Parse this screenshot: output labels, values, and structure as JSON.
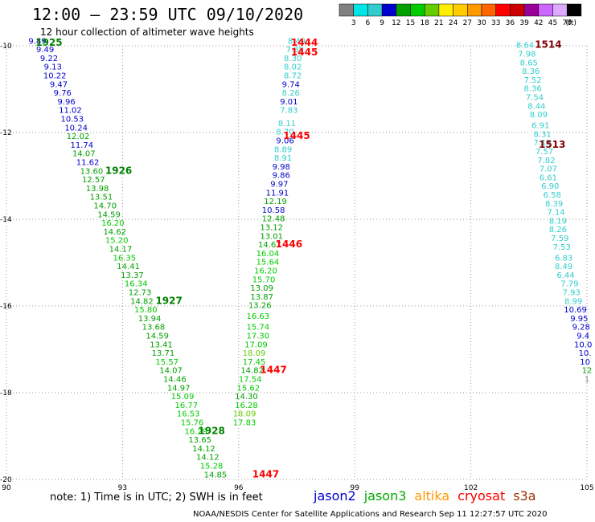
{
  "header": {
    "title": "12:00 – 23:59 UTC 09/10/2020",
    "subtitle": "12 hour collection of altimeter wave heights"
  },
  "footer": {
    "note": "note: 1) Time is in UTC; 2) SWH is in feet",
    "credit": "NOAA/NESDIS Center for Satellite Applications and Research   Sep 11 12:27:57 UTC 2020"
  },
  "satellites": [
    {
      "name": "jason2",
      "color": "#0000cc"
    },
    {
      "name": "jason3",
      "color": "#00aa00"
    },
    {
      "name": "altika",
      "color": "#ff9900"
    },
    {
      "name": "cryosat",
      "color": "#ff0000"
    },
    {
      "name": "s3a",
      "color": "#993300"
    }
  ],
  "chart_data": {
    "type": "scatter",
    "title": "12:00 – 23:59 UTC 09/10/2020",
    "subtitle": "12 hour collection of altimeter wave heights",
    "x_unit": "longitude",
    "y_unit": "latitude",
    "xlim": [
      90,
      105
    ],
    "ylim": [
      -20,
      -10
    ],
    "x_ticks": [
      90,
      93,
      96,
      99,
      102,
      105
    ],
    "y_ticks": [
      -10,
      -12,
      -14,
      -16,
      -18,
      -20
    ],
    "grid": true,
    "color_scale": {
      "unit": "(ft)",
      "thresholds": [
        "3",
        "6",
        "9",
        "12",
        "15",
        "18",
        "21",
        "24",
        "27",
        "30",
        "33",
        "36",
        "39",
        "42",
        "45",
        "70"
      ],
      "colors": [
        "#808080",
        "#00e5e5",
        "#33cccc",
        "#0000cc",
        "#00a000",
        "#00cc00",
        "#66cc00",
        "#ffee00",
        "#ffcc00",
        "#ff9900",
        "#ff6600",
        "#ff0000",
        "#cc0000",
        "#990099",
        "#cc66ff",
        "#ddaaff",
        "#000000"
      ]
    },
    "tracks": [
      {
        "track_labels": [
          {
            "text": "1925",
            "lon": 91.1,
            "lat": -10.0
          },
          {
            "text": "1926",
            "lon": 92.9,
            "lat": -12.95
          },
          {
            "text": "1927",
            "lon": 94.2,
            "lat": -15.95
          },
          {
            "text": "1928",
            "lon": 95.3,
            "lat": -18.95
          }
        ],
        "points": [
          {
            "lon": 90.8,
            "lat": -9.95,
            "swh": "9.89"
          },
          {
            "lon": 91.0,
            "lat": -10.15,
            "swh": "9.49"
          },
          {
            "lon": 91.1,
            "lat": -10.35,
            "swh": "9.22"
          },
          {
            "lon": 91.2,
            "lat": -10.55,
            "swh": "9.13"
          },
          {
            "lon": 91.25,
            "lat": -10.75,
            "swh": "10.22"
          },
          {
            "lon": 91.35,
            "lat": -10.95,
            "swh": "9.47"
          },
          {
            "lon": 91.45,
            "lat": -11.15,
            "swh": "9.76"
          },
          {
            "lon": 91.55,
            "lat": -11.35,
            "swh": "9.96"
          },
          {
            "lon": 91.65,
            "lat": -11.55,
            "swh": "11.02"
          },
          {
            "lon": 91.7,
            "lat": -11.75,
            "swh": "10.53"
          },
          {
            "lon": 91.8,
            "lat": -11.95,
            "swh": "10.24"
          },
          {
            "lon": 91.85,
            "lat": -12.15,
            "swh": "12.02"
          },
          {
            "lon": 91.95,
            "lat": -12.35,
            "swh": "11.74"
          },
          {
            "lon": 92.0,
            "lat": -12.55,
            "swh": "14.07"
          },
          {
            "lon": 92.1,
            "lat": -12.75,
            "swh": "11.62"
          },
          {
            "lon": 92.2,
            "lat": -12.95,
            "swh": "13.60"
          },
          {
            "lon": 92.25,
            "lat": -13.15,
            "swh": "12.57"
          },
          {
            "lon": 92.35,
            "lat": -13.35,
            "swh": "13.98"
          },
          {
            "lon": 92.45,
            "lat": -13.55,
            "swh": "13.51"
          },
          {
            "lon": 92.55,
            "lat": -13.75,
            "swh": "14.70"
          },
          {
            "lon": 92.65,
            "lat": -13.95,
            "swh": "14.59"
          },
          {
            "lon": 92.75,
            "lat": -14.15,
            "swh": "16.20"
          },
          {
            "lon": 92.8,
            "lat": -14.35,
            "swh": "14.62"
          },
          {
            "lon": 92.85,
            "lat": -14.55,
            "swh": "15.20"
          },
          {
            "lon": 92.95,
            "lat": -14.75,
            "swh": "14.17"
          },
          {
            "lon": 93.05,
            "lat": -14.95,
            "swh": "16.35"
          },
          {
            "lon": 93.15,
            "lat": -15.15,
            "swh": "14.41"
          },
          {
            "lon": 93.25,
            "lat": -15.35,
            "swh": "13.37"
          },
          {
            "lon": 93.35,
            "lat": -15.55,
            "swh": "16.34"
          },
          {
            "lon": 93.45,
            "lat": -15.75,
            "swh": "12.73"
          },
          {
            "lon": 93.5,
            "lat": -15.95,
            "swh": "14.82"
          },
          {
            "lon": 93.6,
            "lat": -16.15,
            "swh": "15.80"
          },
          {
            "lon": 93.7,
            "lat": -16.35,
            "swh": "13.94"
          },
          {
            "lon": 93.8,
            "lat": -16.55,
            "swh": "13.68"
          },
          {
            "lon": 93.9,
            "lat": -16.75,
            "swh": "14.59"
          },
          {
            "lon": 94.0,
            "lat": -16.95,
            "swh": "13.41"
          },
          {
            "lon": 94.05,
            "lat": -17.15,
            "swh": "13.71"
          },
          {
            "lon": 94.15,
            "lat": -17.35,
            "swh": "15.57"
          },
          {
            "lon": 94.25,
            "lat": -17.55,
            "swh": "14.07"
          },
          {
            "lon": 94.35,
            "lat": -17.75,
            "swh": "14.46"
          },
          {
            "lon": 94.45,
            "lat": -17.95,
            "swh": "14.97"
          },
          {
            "lon": 94.55,
            "lat": -18.15,
            "swh": "15.09"
          },
          {
            "lon": 94.65,
            "lat": -18.35,
            "swh": "16.77"
          },
          {
            "lon": 94.7,
            "lat": -18.55,
            "swh": "16.53"
          },
          {
            "lon": 94.8,
            "lat": -18.75,
            "swh": "15.76"
          },
          {
            "lon": 94.9,
            "lat": -18.95,
            "swh": "16.29"
          },
          {
            "lon": 95.0,
            "lat": -19.15,
            "swh": "13.65"
          },
          {
            "lon": 95.1,
            "lat": -19.35,
            "swh": "14.12"
          },
          {
            "lon": 95.2,
            "lat": -19.55,
            "swh": "14.12"
          },
          {
            "lon": 95.3,
            "lat": -19.75,
            "swh": "15.28"
          },
          {
            "lon": 95.4,
            "lat": -19.95,
            "swh": "14.85"
          }
        ]
      },
      {
        "track_labels": [
          {
            "text": "1444",
            "lon": 97.7,
            "lat": -10.0
          },
          {
            "text": "1445",
            "lon": 97.7,
            "lat": -10.22
          },
          {
            "text": "1445",
            "lon": 97.5,
            "lat": -12.15
          },
          {
            "text": "1446",
            "lon": 97.3,
            "lat": -14.65
          },
          {
            "text": "1447",
            "lon": 96.9,
            "lat": -17.55
          },
          {
            "text": "1447",
            "lon": 96.7,
            "lat": -19.95
          }
        ],
        "points": [
          {
            "lon": 97.5,
            "lat": -9.95,
            "swh": "8.49"
          },
          {
            "lon": 97.45,
            "lat": -10.15,
            "swh": "7.88"
          },
          {
            "lon": 97.4,
            "lat": -10.35,
            "swh": "8.30"
          },
          {
            "lon": 97.4,
            "lat": -10.55,
            "swh": "8.02"
          },
          {
            "lon": 97.4,
            "lat": -10.75,
            "swh": "8.72"
          },
          {
            "lon": 97.35,
            "lat": -10.95,
            "swh": "9.74"
          },
          {
            "lon": 97.35,
            "lat": -11.15,
            "swh": "8.26"
          },
          {
            "lon": 97.3,
            "lat": -11.35,
            "swh": "9.01"
          },
          {
            "lon": 97.3,
            "lat": -11.55,
            "swh": "7.83"
          },
          {
            "lon": 97.25,
            "lat": -11.85,
            "swh": "8.11"
          },
          {
            "lon": 97.2,
            "lat": -12.05,
            "swh": "8.70"
          },
          {
            "lon": 97.2,
            "lat": -12.25,
            "swh": "9.06"
          },
          {
            "lon": 97.15,
            "lat": -12.45,
            "swh": "8.89"
          },
          {
            "lon": 97.15,
            "lat": -12.65,
            "swh": "8.91"
          },
          {
            "lon": 97.1,
            "lat": -12.85,
            "swh": "9.98"
          },
          {
            "lon": 97.1,
            "lat": -13.05,
            "swh": "9.86"
          },
          {
            "lon": 97.05,
            "lat": -13.25,
            "swh": "9.97"
          },
          {
            "lon": 97.0,
            "lat": -13.45,
            "swh": "11.91"
          },
          {
            "lon": 96.95,
            "lat": -13.65,
            "swh": "12.19"
          },
          {
            "lon": 96.9,
            "lat": -13.85,
            "swh": "10.58"
          },
          {
            "lon": 96.9,
            "lat": -14.05,
            "swh": "12.48"
          },
          {
            "lon": 96.85,
            "lat": -14.25,
            "swh": "13.12"
          },
          {
            "lon": 96.85,
            "lat": -14.45,
            "swh": "13.01"
          },
          {
            "lon": 96.8,
            "lat": -14.65,
            "swh": "14.67"
          },
          {
            "lon": 96.75,
            "lat": -14.85,
            "swh": "16.04"
          },
          {
            "lon": 96.75,
            "lat": -15.05,
            "swh": "15.64"
          },
          {
            "lon": 96.7,
            "lat": -15.25,
            "swh": "16.20"
          },
          {
            "lon": 96.65,
            "lat": -15.45,
            "swh": "15.70"
          },
          {
            "lon": 96.6,
            "lat": -15.65,
            "swh": "13.09"
          },
          {
            "lon": 96.6,
            "lat": -15.85,
            "swh": "13.87"
          },
          {
            "lon": 96.55,
            "lat": -16.05,
            "swh": "13.26"
          },
          {
            "lon": 96.5,
            "lat": -16.3,
            "swh": "16.63"
          },
          {
            "lon": 96.5,
            "lat": -16.55,
            "swh": "15.74"
          },
          {
            "lon": 96.5,
            "lat": -16.75,
            "swh": "17.30"
          },
          {
            "lon": 96.45,
            "lat": -16.95,
            "swh": "17.09"
          },
          {
            "lon": 96.4,
            "lat": -17.15,
            "swh": "18.09"
          },
          {
            "lon": 96.4,
            "lat": -17.35,
            "swh": "17.45"
          },
          {
            "lon": 96.35,
            "lat": -17.55,
            "swh": "14.82"
          },
          {
            "lon": 96.3,
            "lat": -17.75,
            "swh": "17.54"
          },
          {
            "lon": 96.25,
            "lat": -17.95,
            "swh": "15.62"
          },
          {
            "lon": 96.2,
            "lat": -18.15,
            "swh": "14.30"
          },
          {
            "lon": 96.2,
            "lat": -18.35,
            "swh": "16.28"
          },
          {
            "lon": 96.15,
            "lat": -18.55,
            "swh": "18.09"
          },
          {
            "lon": 96.15,
            "lat": -18.75,
            "swh": "17.83"
          }
        ]
      },
      {
        "track_labels": [
          {
            "text": "1514",
            "lon": 104.0,
            "lat": -10.05
          },
          {
            "text": "1513",
            "lon": 104.1,
            "lat": -12.35
          }
        ],
        "points": [
          {
            "lon": 103.4,
            "lat": -10.05,
            "swh": "8.64"
          },
          {
            "lon": 103.45,
            "lat": -10.25,
            "swh": "7.98"
          },
          {
            "lon": 103.5,
            "lat": -10.45,
            "swh": "8.65"
          },
          {
            "lon": 103.55,
            "lat": -10.65,
            "swh": "8.36"
          },
          {
            "lon": 103.6,
            "lat": -10.85,
            "swh": "7.52"
          },
          {
            "lon": 103.6,
            "lat": -11.05,
            "swh": "8.36"
          },
          {
            "lon": 103.65,
            "lat": -11.25,
            "swh": "7.54"
          },
          {
            "lon": 103.7,
            "lat": -11.45,
            "swh": "8.44"
          },
          {
            "lon": 103.75,
            "lat": -11.65,
            "swh": "8.09"
          },
          {
            "lon": 103.8,
            "lat": -11.9,
            "swh": "6.91"
          },
          {
            "lon": 103.85,
            "lat": -12.1,
            "swh": "8.31"
          },
          {
            "lon": 103.85,
            "lat": -12.3,
            "swh": "7.13"
          },
          {
            "lon": 103.9,
            "lat": -12.5,
            "swh": "7.57"
          },
          {
            "lon": 103.95,
            "lat": -12.7,
            "swh": "7.82"
          },
          {
            "lon": 104.0,
            "lat": -12.9,
            "swh": "7.07"
          },
          {
            "lon": 104.0,
            "lat": -13.1,
            "swh": "6.61"
          },
          {
            "lon": 104.05,
            "lat": -13.3,
            "swh": "6.90"
          },
          {
            "lon": 104.1,
            "lat": -13.5,
            "swh": "6.58"
          },
          {
            "lon": 104.15,
            "lat": -13.7,
            "swh": "8.39"
          },
          {
            "lon": 104.2,
            "lat": -13.9,
            "swh": "7.14"
          },
          {
            "lon": 104.25,
            "lat": -14.1,
            "swh": "8.19"
          },
          {
            "lon": 104.25,
            "lat": -14.3,
            "swh": "8.26"
          },
          {
            "lon": 104.3,
            "lat": -14.5,
            "swh": "7.59"
          },
          {
            "lon": 104.35,
            "lat": -14.7,
            "swh": "7.53"
          },
          {
            "lon": 104.4,
            "lat": -14.95,
            "swh": "6.83"
          },
          {
            "lon": 104.4,
            "lat": -15.15,
            "swh": "8.49"
          },
          {
            "lon": 104.45,
            "lat": -15.35,
            "swh": "6.44"
          },
          {
            "lon": 104.55,
            "lat": -15.55,
            "swh": "7.79"
          },
          {
            "lon": 104.6,
            "lat": -15.75,
            "swh": "7.93"
          },
          {
            "lon": 104.65,
            "lat": -15.95,
            "swh": "8.99"
          },
          {
            "lon": 104.7,
            "lat": -16.15,
            "swh": "10.69"
          },
          {
            "lon": 104.8,
            "lat": -16.35,
            "swh": "9.95"
          },
          {
            "lon": 104.85,
            "lat": -16.55,
            "swh": "9.28"
          },
          {
            "lon": 104.9,
            "lat": -16.75,
            "swh": "9.4"
          },
          {
            "lon": 104.9,
            "lat": -16.95,
            "swh": "10.0"
          },
          {
            "lon": 104.95,
            "lat": -17.15,
            "swh": "10."
          },
          {
            "lon": 104.95,
            "lat": -17.35,
            "swh": "10"
          },
          {
            "lon": 105.0,
            "lat": -17.55,
            "swh": "12"
          },
          {
            "lon": 105.0,
            "lat": -17.75,
            "swh": "1"
          }
        ]
      }
    ]
  }
}
